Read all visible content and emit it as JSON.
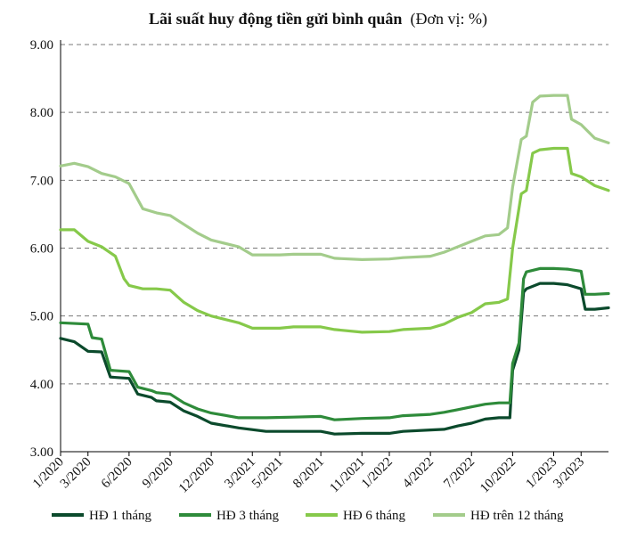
{
  "chart_data": {
    "type": "line",
    "title": "Lãi suất huy động tiền gửi bình quân",
    "subtitle": "(Đơn vị: %)",
    "ylim": [
      3.0,
      9.0
    ],
    "yticks": [
      "9.00",
      "8.00",
      "7.00",
      "6.00",
      "5.00",
      "4.00",
      "3.00"
    ],
    "ytick_values": [
      9,
      8,
      7,
      6,
      5,
      4,
      3
    ],
    "grid": "horizontal-dashed",
    "legend_position": "bottom",
    "x_range": [
      "2020-01",
      "2023-05"
    ],
    "xticks": [
      "1/2020",
      "3/2020",
      "6/2020",
      "9/2020",
      "12/2020",
      "3/2021",
      "5/2021",
      "8/2021",
      "11/2021",
      "1/2022",
      "4/2022",
      "7/2022",
      "10/2022",
      "1/2023",
      "3/2023"
    ],
    "xtick_dates": [
      "2020-01",
      "2020-03",
      "2020-06",
      "2020-09",
      "2020-12",
      "2021-03",
      "2021-05",
      "2021-08",
      "2021-11",
      "2022-01",
      "2022-04",
      "2022-07",
      "2022-10",
      "2023-01",
      "2023-03"
    ],
    "series": [
      {
        "name": "HĐ 1 tháng",
        "color": "#0b4a2c",
        "points": [
          [
            "2020-01",
            4.67
          ],
          [
            "2020-02",
            4.62
          ],
          [
            "2020-03",
            4.48
          ],
          [
            "2020-04",
            4.47
          ],
          [
            "2020-04-20",
            4.1
          ],
          [
            "2020-06",
            4.08
          ],
          [
            "2020-06-20",
            3.85
          ],
          [
            "2020-07-20",
            3.8
          ],
          [
            "2020-08",
            3.75
          ],
          [
            "2020-09",
            3.73
          ],
          [
            "2020-10",
            3.6
          ],
          [
            "2020-11",
            3.52
          ],
          [
            "2020-12",
            3.42
          ],
          [
            "2021-02",
            3.35
          ],
          [
            "2021-04",
            3.3
          ],
          [
            "2021-06",
            3.3
          ],
          [
            "2021-08",
            3.3
          ],
          [
            "2021-09",
            3.26
          ],
          [
            "2021-11",
            3.27
          ],
          [
            "2022-01",
            3.27
          ],
          [
            "2022-02",
            3.3
          ],
          [
            "2022-04",
            3.32
          ],
          [
            "2022-05",
            3.33
          ],
          [
            "2022-06",
            3.38
          ],
          [
            "2022-07",
            3.42
          ],
          [
            "2022-08",
            3.48
          ],
          [
            "2022-09",
            3.5
          ],
          [
            "2022-09-25",
            3.5
          ],
          [
            "2022-10",
            4.2
          ],
          [
            "2022-10-15",
            4.5
          ],
          [
            "2022-10-25",
            5.35
          ],
          [
            "2022-11",
            5.4
          ],
          [
            "2022-12",
            5.48
          ],
          [
            "2023-01",
            5.48
          ],
          [
            "2023-02",
            5.46
          ],
          [
            "2023-03",
            5.4
          ],
          [
            "2023-03-10",
            5.1
          ],
          [
            "2023-04",
            5.1
          ],
          [
            "2023-05",
            5.12
          ]
        ]
      },
      {
        "name": "HĐ 3 tháng",
        "color": "#2e8b3a",
        "points": [
          [
            "2020-01",
            4.9
          ],
          [
            "2020-03",
            4.88
          ],
          [
            "2020-03-10",
            4.68
          ],
          [
            "2020-04",
            4.66
          ],
          [
            "2020-04-20",
            4.2
          ],
          [
            "2020-06",
            4.18
          ],
          [
            "2020-06-20",
            3.95
          ],
          [
            "2020-07-20",
            3.9
          ],
          [
            "2020-08",
            3.87
          ],
          [
            "2020-09",
            3.85
          ],
          [
            "2020-10",
            3.72
          ],
          [
            "2020-11",
            3.63
          ],
          [
            "2020-12",
            3.57
          ],
          [
            "2021-02",
            3.5
          ],
          [
            "2021-04",
            3.5
          ],
          [
            "2021-06",
            3.51
          ],
          [
            "2021-08",
            3.52
          ],
          [
            "2021-09",
            3.47
          ],
          [
            "2021-11",
            3.49
          ],
          [
            "2022-01",
            3.5
          ],
          [
            "2022-02",
            3.53
          ],
          [
            "2022-04",
            3.55
          ],
          [
            "2022-05",
            3.58
          ],
          [
            "2022-06",
            3.62
          ],
          [
            "2022-07",
            3.66
          ],
          [
            "2022-08",
            3.7
          ],
          [
            "2022-09",
            3.72
          ],
          [
            "2022-09-25",
            3.72
          ],
          [
            "2022-10",
            4.3
          ],
          [
            "2022-10-15",
            4.6
          ],
          [
            "2022-10-25",
            5.55
          ],
          [
            "2022-11",
            5.65
          ],
          [
            "2022-12",
            5.7
          ],
          [
            "2023-01",
            5.7
          ],
          [
            "2023-02",
            5.69
          ],
          [
            "2023-03",
            5.66
          ],
          [
            "2023-03-10",
            5.32
          ],
          [
            "2023-04",
            5.32
          ],
          [
            "2023-05",
            5.33
          ]
        ]
      },
      {
        "name": "HĐ 6 tháng",
        "color": "#86c94a",
        "points": [
          [
            "2020-01",
            6.27
          ],
          [
            "2020-02",
            6.27
          ],
          [
            "2020-03",
            6.1
          ],
          [
            "2020-04",
            6.02
          ],
          [
            "2020-05",
            5.88
          ],
          [
            "2020-05-20",
            5.55
          ],
          [
            "2020-06",
            5.45
          ],
          [
            "2020-07",
            5.4
          ],
          [
            "2020-08",
            5.4
          ],
          [
            "2020-09",
            5.38
          ],
          [
            "2020-10",
            5.2
          ],
          [
            "2020-11",
            5.08
          ],
          [
            "2020-12",
            5.0
          ],
          [
            "2021-02",
            4.9
          ],
          [
            "2021-03",
            4.82
          ],
          [
            "2021-05",
            4.82
          ],
          [
            "2021-06",
            4.84
          ],
          [
            "2021-08",
            4.84
          ],
          [
            "2021-09",
            4.8
          ],
          [
            "2021-11",
            4.76
          ],
          [
            "2022-01",
            4.77
          ],
          [
            "2022-02",
            4.8
          ],
          [
            "2022-04",
            4.82
          ],
          [
            "2022-05",
            4.88
          ],
          [
            "2022-06",
            4.98
          ],
          [
            "2022-07",
            5.05
          ],
          [
            "2022-08",
            5.18
          ],
          [
            "2022-09",
            5.2
          ],
          [
            "2022-09-20",
            5.25
          ],
          [
            "2022-10",
            6.0
          ],
          [
            "2022-10-20",
            6.8
          ],
          [
            "2022-11",
            6.85
          ],
          [
            "2022-11-15",
            7.4
          ],
          [
            "2022-12",
            7.45
          ],
          [
            "2023-01",
            7.47
          ],
          [
            "2023-02",
            7.47
          ],
          [
            "2023-02-10",
            7.1
          ],
          [
            "2023-03",
            7.05
          ],
          [
            "2023-04",
            6.92
          ],
          [
            "2023-05",
            6.85
          ]
        ]
      },
      {
        "name": "HĐ trên 12 tháng",
        "color": "#a3cc8b",
        "points": [
          [
            "2020-01",
            7.21
          ],
          [
            "2020-02",
            7.25
          ],
          [
            "2020-03",
            7.2
          ],
          [
            "2020-04",
            7.1
          ],
          [
            "2020-05",
            7.05
          ],
          [
            "2020-06",
            6.95
          ],
          [
            "2020-07",
            6.58
          ],
          [
            "2020-08",
            6.52
          ],
          [
            "2020-09",
            6.48
          ],
          [
            "2020-10",
            6.35
          ],
          [
            "2020-11",
            6.22
          ],
          [
            "2020-12",
            6.12
          ],
          [
            "2021-02",
            6.02
          ],
          [
            "2021-03",
            5.9
          ],
          [
            "2021-05",
            5.9
          ],
          [
            "2021-06",
            5.91
          ],
          [
            "2021-08",
            5.91
          ],
          [
            "2021-09",
            5.85
          ],
          [
            "2021-11",
            5.83
          ],
          [
            "2022-01",
            5.84
          ],
          [
            "2022-02",
            5.86
          ],
          [
            "2022-04",
            5.88
          ],
          [
            "2022-05",
            5.94
          ],
          [
            "2022-06",
            6.02
          ],
          [
            "2022-07",
            6.1
          ],
          [
            "2022-08",
            6.18
          ],
          [
            "2022-09",
            6.2
          ],
          [
            "2022-09-20",
            6.3
          ],
          [
            "2022-10",
            6.9
          ],
          [
            "2022-10-20",
            7.6
          ],
          [
            "2022-11",
            7.65
          ],
          [
            "2022-11-15",
            8.15
          ],
          [
            "2022-12",
            8.24
          ],
          [
            "2023-01",
            8.25
          ],
          [
            "2023-02",
            8.25
          ],
          [
            "2023-02-10",
            7.9
          ],
          [
            "2023-03",
            7.82
          ],
          [
            "2023-04",
            7.62
          ],
          [
            "2023-05",
            7.55
          ]
        ]
      }
    ]
  }
}
